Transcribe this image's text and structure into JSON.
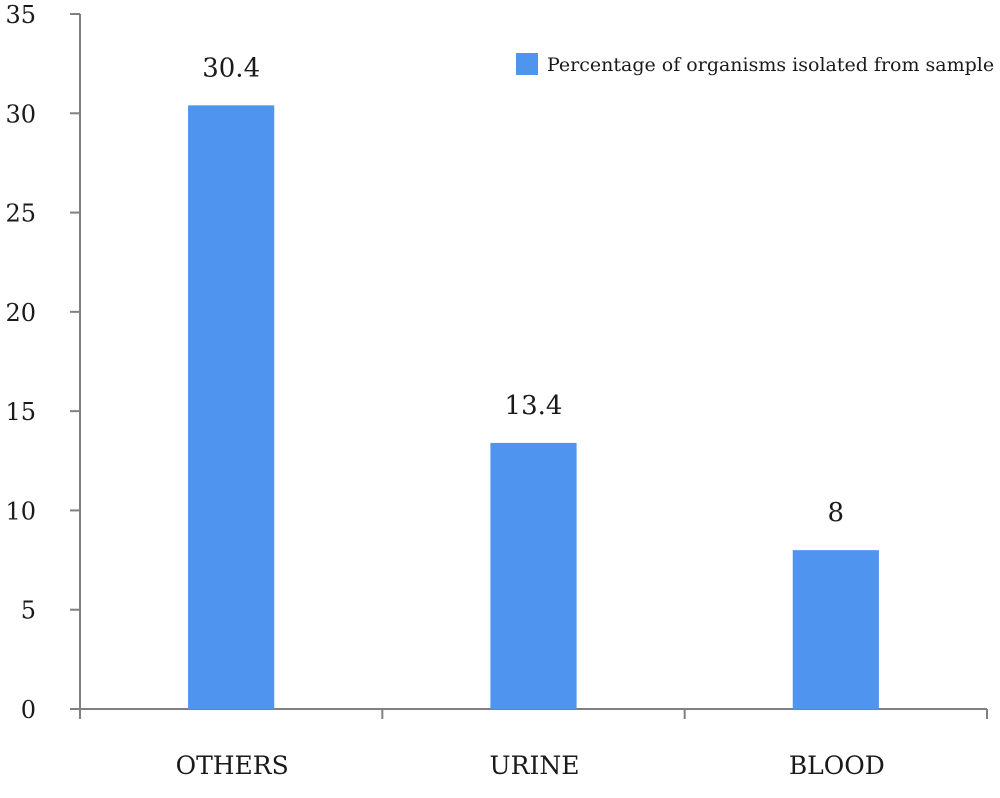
{
  "chart_data": {
    "type": "bar",
    "categories": [
      "OTHERS",
      "URINE",
      "BLOOD"
    ],
    "series": [
      {
        "name": "Percentage of organisms isolated from sample",
        "values": [
          30.4,
          13.4,
          8
        ],
        "data_labels": [
          "30.4",
          "13.4",
          "8"
        ],
        "color": "#4f94ef"
      }
    ],
    "title": "",
    "xlabel": "",
    "ylabel": "",
    "ylim": [
      0,
      35
    ],
    "yticks": [
      "0",
      "5",
      "10",
      "15",
      "20",
      "25",
      "30",
      "35"
    ],
    "grid": false,
    "legend_position": "top-right"
  }
}
